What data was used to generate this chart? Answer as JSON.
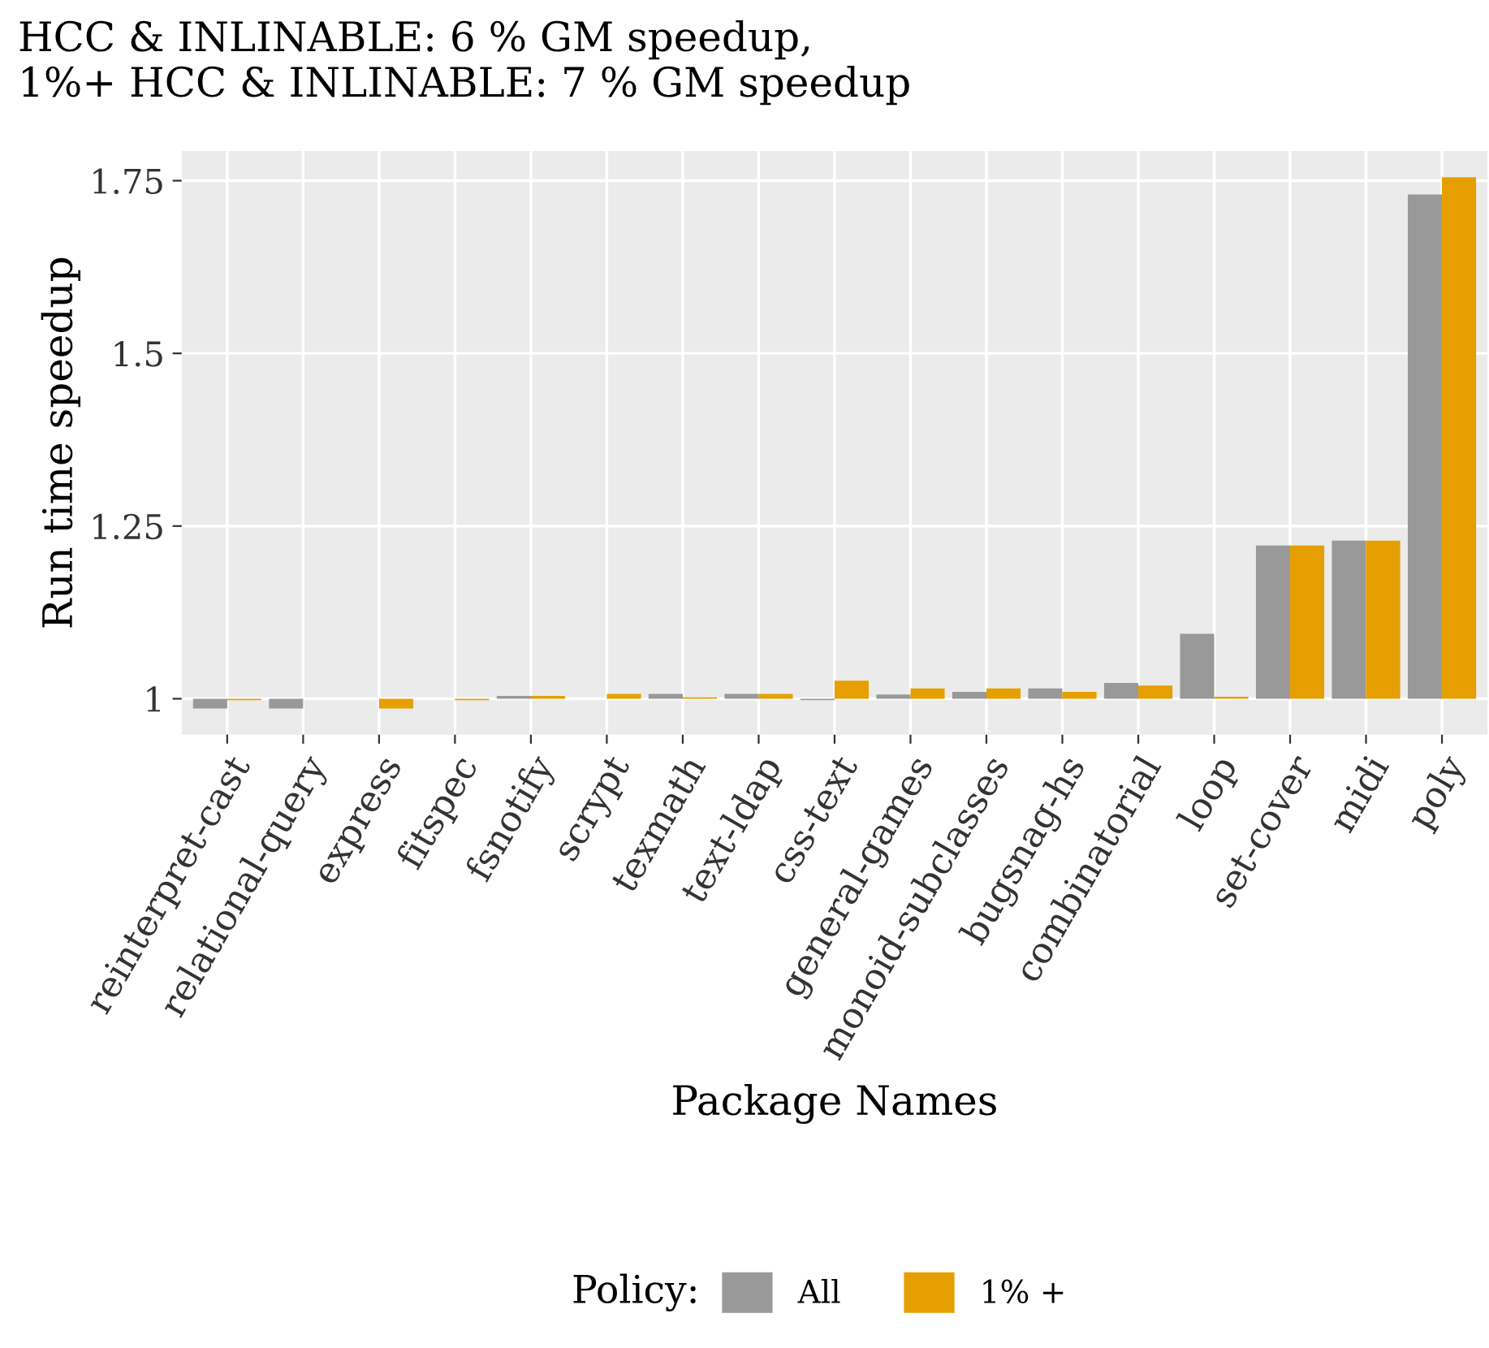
{
  "chart_data": {
    "type": "bar",
    "title": "HCC & INLINABLE: 6 % GM speedup,\n1%+ HCC & INLINABLE: 7 % GM speedup",
    "xlabel": "Package Names",
    "ylabel": "Run time speedup",
    "legend_title": "Policy:",
    "categories": [
      "reinterpret-cast",
      "relational-query",
      "express",
      "fitspec",
      "fsnotify",
      "scrypt",
      "texmath",
      "text-ldap",
      "css-text",
      "general-games",
      "monoid-subclasses",
      "bugsnag-hs",
      "combinatorial",
      "loop",
      "set-cover",
      "midi",
      "poly"
    ],
    "series": [
      {
        "name": "All",
        "color": "#999999",
        "base": [
          1,
          1,
          null,
          null,
          1,
          null,
          1,
          1,
          1,
          1,
          1,
          1,
          1,
          1,
          1,
          1,
          1
        ],
        "values": [
          -0.014,
          -0.014,
          null,
          null,
          0.004,
          null,
          0.007,
          0.007,
          -0.002,
          0.006,
          0.01,
          0.015,
          0.023,
          0.094,
          0.222,
          0.229,
          0.73
        ]
      },
      {
        "name": "1% +",
        "color": "#e69f00",
        "base": [
          1,
          null,
          1,
          1,
          1,
          1,
          1,
          1,
          1,
          1,
          1,
          1,
          1,
          1,
          1,
          1,
          1
        ],
        "values": [
          -0.002,
          null,
          -0.014,
          -0.002,
          0.004,
          0.007,
          0.002,
          0.007,
          0.026,
          0.015,
          0.015,
          0.01,
          0.019,
          0.003,
          0.222,
          0.229,
          0.755
        ]
      }
    ],
    "ylim": [
      0.948,
      1.793
    ],
    "yticks": [
      {
        "value": 1,
        "label": "1"
      },
      1.25,
      1.5,
      1.75
    ],
    "grid": true,
    "legend": "bottom"
  }
}
